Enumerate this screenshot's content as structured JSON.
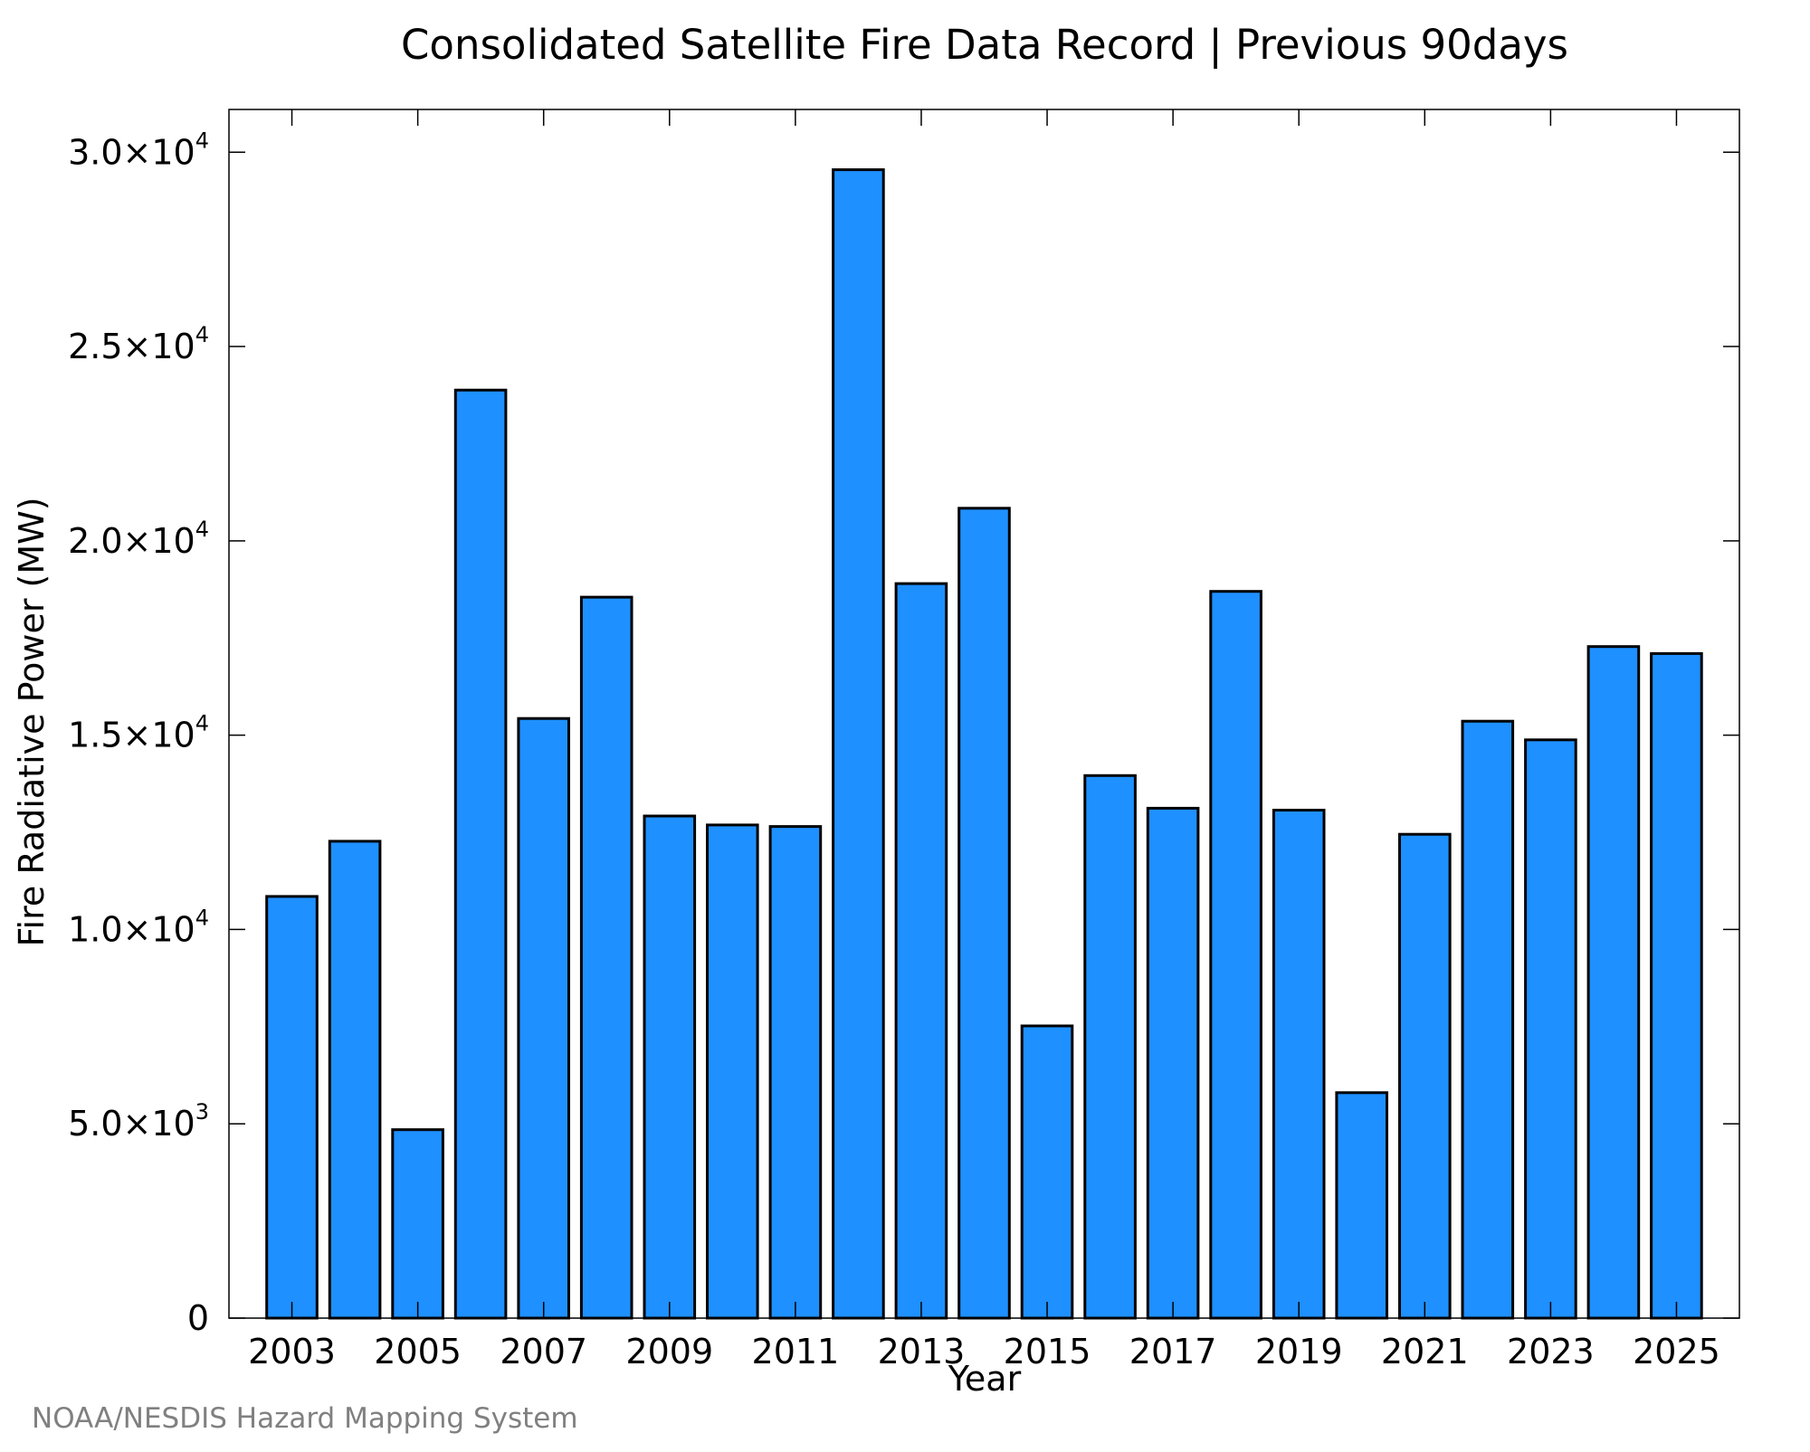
{
  "chart_data": {
    "type": "bar",
    "title": "Consolidated Satellite Fire Data Record | Previous 90days",
    "xlabel": "Year",
    "ylabel": "Fire Radiative Power (MW)",
    "categories": [
      "2003",
      "2004",
      "2005",
      "2006",
      "2007",
      "2008",
      "2009",
      "2010",
      "2011",
      "2012",
      "2013",
      "2014",
      "2015",
      "2016",
      "2017",
      "2018",
      "2019",
      "2020",
      "2021",
      "2022",
      "2023",
      "2024",
      "2025"
    ],
    "values": [
      10850,
      12270,
      4850,
      23880,
      15430,
      18550,
      12920,
      12690,
      12650,
      29550,
      18900,
      20840,
      7520,
      13960,
      13120,
      18700,
      13070,
      5800,
      12450,
      15360,
      14880,
      17280,
      17100
    ],
    "ylim": [
      0,
      31100
    ],
    "xlim": [
      2002,
      2026
    ],
    "xticks": [
      "2003",
      "2005",
      "2007",
      "2009",
      "2011",
      "2013",
      "2015",
      "2017",
      "2019",
      "2021",
      "2023",
      "2025"
    ],
    "yticks": [
      {
        "value": 0,
        "label": "0",
        "exp": ""
      },
      {
        "value": 5000,
        "label": "5.0×10",
        "exp": "3"
      },
      {
        "value": 10000,
        "label": "1.0×10",
        "exp": "4"
      },
      {
        "value": 15000,
        "label": "1.5×10",
        "exp": "4"
      },
      {
        "value": 20000,
        "label": "2.0×10",
        "exp": "4"
      },
      {
        "value": 25000,
        "label": "2.5×10",
        "exp": "4"
      },
      {
        "value": 30000,
        "label": "3.0×10",
        "exp": "4"
      }
    ],
    "bar_color": "#1e90ff",
    "bar_edge_color": "#000000",
    "grid": false,
    "legend": "none"
  },
  "credit": "NOAA/NESDIS Hazard Mapping System"
}
